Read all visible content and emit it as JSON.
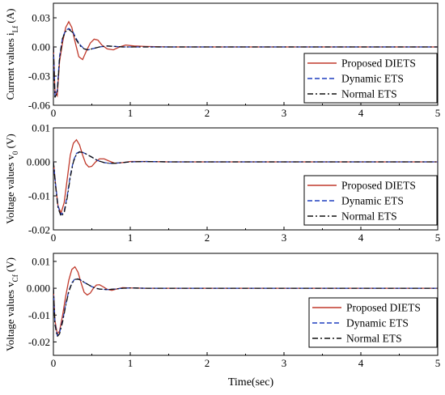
{
  "chart_data": [
    {
      "type": "line",
      "ylabel_main": "Current values i",
      "ylabel_sub": "Lf",
      "ylabel_unit": " (A)",
      "xlim": [
        0,
        5
      ],
      "ylim": [
        -0.06,
        0.045
      ],
      "xticks": [
        "0",
        "1",
        "2",
        "3",
        "4",
        "5"
      ],
      "yticks": [
        {
          "v": 0.03,
          "t": "0.03"
        },
        {
          "v": 0.0,
          "t": "0.00"
        },
        {
          "v": -0.03,
          "t": "-0.03"
        },
        {
          "v": -0.06,
          "t": "-0.06"
        }
      ],
      "legend": [
        "Proposed DIETS",
        "Dynamic ETS",
        "Normal ETS"
      ],
      "legend_position": "right",
      "series": [
        {
          "name": "Proposed DIETS",
          "color": "#c0392b",
          "dash": "solid",
          "x": [
            0,
            0.02,
            0.05,
            0.08,
            0.12,
            0.16,
            0.2,
            0.24,
            0.28,
            0.33,
            0.38,
            0.43,
            0.48,
            0.53,
            0.58,
            0.63,
            0.7,
            0.78,
            0.86,
            0.94,
            1.05,
            1.2,
            1.5,
            2,
            3,
            4,
            5
          ],
          "y": [
            0,
            -0.045,
            -0.05,
            -0.015,
            0.005,
            0.02,
            0.026,
            0.02,
            0.006,
            -0.01,
            -0.013,
            -0.004,
            0.004,
            0.008,
            0.007,
            0.002,
            -0.002,
            -0.003,
            0.0,
            0.002,
            0.001,
            0.0005,
            0,
            0,
            0,
            0,
            0
          ]
        },
        {
          "name": "Dynamic ETS",
          "color": "#1f3fbf",
          "dash": "6,3",
          "x": [
            0,
            0.02,
            0.05,
            0.08,
            0.12,
            0.16,
            0.2,
            0.25,
            0.3,
            0.35,
            0.4,
            0.45,
            0.5,
            0.6,
            0.7,
            0.8,
            0.9,
            1.0,
            1.2,
            1.5,
            2,
            3,
            4,
            5
          ],
          "y": [
            0,
            -0.05,
            -0.045,
            -0.01,
            0.01,
            0.017,
            0.019,
            0.016,
            0.008,
            0.002,
            -0.002,
            -0.003,
            -0.002,
            0.0,
            0.001,
            0.0005,
            0.0,
            0.0,
            0,
            0,
            0,
            0,
            0,
            0
          ]
        },
        {
          "name": "Normal ETS",
          "color": "#111111",
          "dash": "7,3,2,3",
          "x": [
            0,
            0.02,
            0.05,
            0.08,
            0.12,
            0.16,
            0.2,
            0.25,
            0.3,
            0.35,
            0.4,
            0.45,
            0.5,
            0.6,
            0.7,
            0.8,
            0.9,
            1.0,
            1.2,
            1.5,
            2,
            3,
            4,
            5
          ],
          "y": [
            0,
            -0.052,
            -0.047,
            -0.012,
            0.009,
            0.016,
            0.018,
            0.015,
            0.007,
            0.001,
            -0.002,
            -0.003,
            -0.002,
            0.0,
            0.001,
            0.0005,
            0.0,
            0.0,
            0,
            0,
            0,
            0,
            0,
            0
          ]
        }
      ]
    },
    {
      "type": "line",
      "ylabel_main": "Voltage values v",
      "ylabel_sub": "0",
      "ylabel_unit": " (V)",
      "xlim": [
        0,
        5
      ],
      "ylim": [
        -0.02,
        0.01
      ],
      "xticks": [
        "0",
        "1",
        "2",
        "3",
        "4",
        "5"
      ],
      "yticks": [
        {
          "v": 0.01,
          "t": "0.01"
        },
        {
          "v": 0.0,
          "t": "0.000"
        },
        {
          "v": -0.01,
          "t": "-0.01"
        },
        {
          "v": -0.02,
          "t": "-0.02"
        }
      ],
      "legend": [
        "Proposed DIETS",
        "Dynamic ETS",
        "Normal ETS"
      ],
      "legend_position": "right",
      "series": [
        {
          "name": "Proposed DIETS",
          "color": "#c0392b",
          "dash": "solid",
          "x": [
            0,
            0.03,
            0.06,
            0.1,
            0.14,
            0.18,
            0.22,
            0.26,
            0.3,
            0.34,
            0.38,
            0.42,
            0.46,
            0.5,
            0.55,
            0.6,
            0.66,
            0.72,
            0.8,
            0.9,
            1.0,
            1.2,
            1.5,
            2,
            3,
            4,
            5
          ],
          "y": [
            0,
            -0.007,
            -0.013,
            -0.015,
            -0.012,
            -0.005,
            0.002,
            0.0055,
            0.0065,
            0.005,
            0.002,
            -0.0005,
            -0.0015,
            -0.0013,
            0.0,
            0.0009,
            0.0009,
            0.0003,
            -0.0004,
            -0.0002,
            0.0001,
            0.0001,
            0,
            0,
            0,
            0,
            0
          ]
        },
        {
          "name": "Dynamic ETS",
          "color": "#1f3fbf",
          "dash": "6,3",
          "x": [
            0,
            0.03,
            0.06,
            0.1,
            0.14,
            0.18,
            0.22,
            0.26,
            0.3,
            0.34,
            0.38,
            0.42,
            0.46,
            0.5,
            0.55,
            0.6,
            0.66,
            0.72,
            0.8,
            0.9,
            1.0,
            1.2,
            1.5,
            2,
            3,
            4,
            5
          ],
          "y": [
            0,
            -0.007,
            -0.013,
            -0.0155,
            -0.0145,
            -0.01,
            -0.004,
            0.0003,
            0.0025,
            0.003,
            0.0028,
            0.0024,
            0.0019,
            0.0014,
            0.0007,
            0.0002,
            -0.0002,
            -0.0004,
            -0.0004,
            -0.0002,
            0.0,
            0.0001,
            0,
            0,
            0,
            0,
            0
          ]
        },
        {
          "name": "Normal ETS",
          "color": "#111111",
          "dash": "7,3,2,3",
          "x": [
            0,
            0.03,
            0.06,
            0.1,
            0.14,
            0.18,
            0.22,
            0.26,
            0.3,
            0.34,
            0.38,
            0.42,
            0.46,
            0.5,
            0.55,
            0.6,
            0.66,
            0.72,
            0.8,
            0.9,
            1.0,
            1.2,
            1.5,
            2,
            3,
            4,
            5
          ],
          "y": [
            0,
            -0.0075,
            -0.0135,
            -0.016,
            -0.015,
            -0.0105,
            -0.0045,
            0.0,
            0.0023,
            0.0029,
            0.0028,
            0.0024,
            0.0019,
            0.0014,
            0.0007,
            0.0002,
            -0.0002,
            -0.0004,
            -0.0004,
            -0.0002,
            0.0,
            0.0001,
            0,
            0,
            0,
            0,
            0
          ]
        }
      ]
    },
    {
      "type": "line",
      "ylabel_main": "Voltage values v",
      "ylabel_sub": "Cf",
      "ylabel_unit": " (V)",
      "xlim": [
        0,
        5
      ],
      "ylim": [
        -0.025,
        0.013
      ],
      "xticks": [
        "0",
        "1",
        "2",
        "3",
        "4",
        "5"
      ],
      "yticks": [
        {
          "v": 0.01,
          "t": "0.01"
        },
        {
          "v": 0.0,
          "t": "0.000"
        },
        {
          "v": -0.01,
          "t": "-0.01"
        },
        {
          "v": -0.02,
          "t": "-0.02"
        }
      ],
      "legend": [
        "Proposed DIETS",
        "Dynamic ETS",
        "Normal ETS"
      ],
      "legend_position": "right",
      "series": [
        {
          "name": "Proposed DIETS",
          "color": "#c0392b",
          "dash": "solid",
          "x": [
            0,
            0.02,
            0.05,
            0.08,
            0.12,
            0.16,
            0.2,
            0.24,
            0.28,
            0.32,
            0.36,
            0.4,
            0.44,
            0.48,
            0.52,
            0.56,
            0.6,
            0.65,
            0.7,
            0.76,
            0.82,
            0.9,
            1.0,
            1.2,
            1.5,
            2,
            3,
            4,
            5
          ],
          "y": [
            0,
            -0.012,
            -0.017,
            -0.016,
            -0.01,
            -0.003,
            0.003,
            0.007,
            0.008,
            0.006,
            0.002,
            -0.0015,
            -0.0025,
            -0.0018,
            0.0,
            0.0012,
            0.0013,
            0.0005,
            -0.0004,
            -0.0008,
            -0.0003,
            0.0002,
            0.0001,
            0,
            0,
            0,
            0,
            0,
            0
          ]
        },
        {
          "name": "Dynamic ETS",
          "color": "#1f3fbf",
          "dash": "6,3",
          "x": [
            0,
            0.02,
            0.05,
            0.08,
            0.12,
            0.16,
            0.2,
            0.24,
            0.28,
            0.32,
            0.36,
            0.4,
            0.45,
            0.5,
            0.55,
            0.6,
            0.7,
            0.8,
            0.9,
            1.0,
            1.2,
            1.5,
            2,
            3,
            4,
            5
          ],
          "y": [
            0,
            -0.013,
            -0.0175,
            -0.0165,
            -0.012,
            -0.006,
            -0.001,
            0.002,
            0.0035,
            0.0035,
            0.003,
            0.0022,
            0.0014,
            0.0006,
            0.0,
            -0.0003,
            -0.0005,
            -0.0003,
            0.0,
            0.0001,
            0,
            0,
            0,
            0,
            0,
            0
          ]
        },
        {
          "name": "Normal ETS",
          "color": "#111111",
          "dash": "7,3,2,3",
          "x": [
            0,
            0.02,
            0.05,
            0.08,
            0.12,
            0.16,
            0.2,
            0.24,
            0.28,
            0.32,
            0.36,
            0.4,
            0.45,
            0.5,
            0.55,
            0.6,
            0.7,
            0.8,
            0.9,
            1.0,
            1.2,
            1.5,
            2,
            3,
            4,
            5
          ],
          "y": [
            0,
            -0.0135,
            -0.018,
            -0.017,
            -0.0125,
            -0.0065,
            -0.0013,
            0.0018,
            0.0033,
            0.0034,
            0.003,
            0.0022,
            0.0014,
            0.0006,
            0.0,
            -0.0003,
            -0.0005,
            -0.0003,
            0.0,
            0.0001,
            0,
            0,
            0,
            0,
            0,
            0
          ]
        }
      ]
    }
  ],
  "figure": {
    "xlabel": "Time(sec)"
  }
}
